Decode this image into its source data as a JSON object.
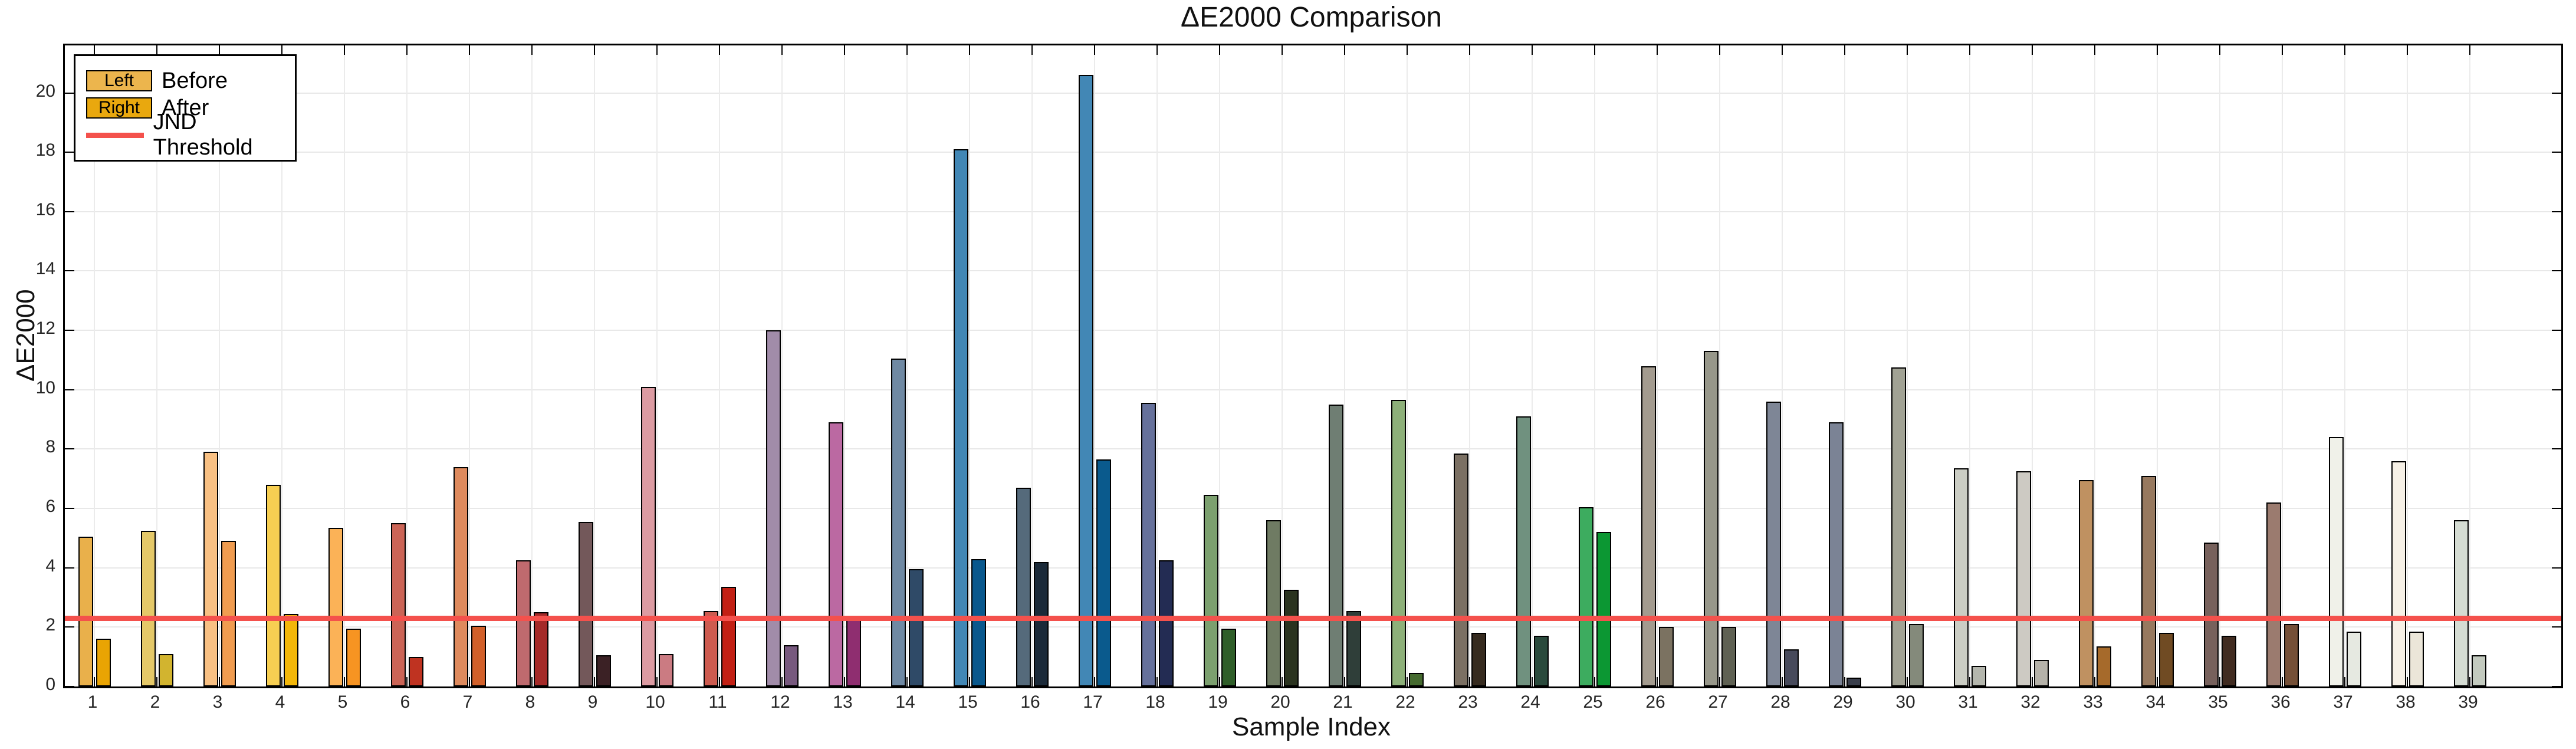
{
  "chart": {
    "title": "ΔE2000 Comparison",
    "xlabel": "Sample Index",
    "ylabel": "ΔE2000",
    "legend": {
      "before_swatch_text": "Left",
      "after_swatch_text": "Right",
      "before_label": "Before",
      "after_label": "After",
      "threshold_label": "JND Threshold"
    },
    "colors": {
      "threshold_line": "#F4514C",
      "axis": "#000000",
      "grid": "#E8E8E8",
      "tick_label": "#262626",
      "legend_before_swatch": "#ECB54D",
      "legend_after_swatch": "#E9A80E"
    }
  },
  "chart_data": {
    "type": "bar",
    "title": "ΔE2000 Comparison",
    "xlabel": "Sample Index",
    "ylabel": "ΔE2000",
    "categories": [
      1,
      2,
      3,
      4,
      5,
      6,
      7,
      8,
      9,
      10,
      11,
      12,
      13,
      14,
      15,
      16,
      17,
      18,
      19,
      20,
      21,
      22,
      23,
      24,
      25,
      26,
      27,
      28,
      29,
      30,
      31,
      32,
      33,
      34,
      35,
      36,
      37,
      38,
      39
    ],
    "series": [
      {
        "name": "Before",
        "values": [
          5.05,
          5.25,
          7.9,
          6.8,
          5.35,
          5.5,
          7.4,
          4.25,
          5.55,
          10.1,
          2.55,
          12.0,
          8.9,
          11.05,
          18.1,
          6.7,
          20.6,
          9.55,
          6.45,
          5.6,
          9.5,
          9.65,
          7.85,
          9.1,
          6.05,
          10.8,
          11.3,
          9.6,
          8.9,
          10.75,
          7.35,
          7.25,
          6.95,
          7.1,
          4.85,
          6.2,
          8.4,
          7.6,
          5.6
        ],
        "colors": [
          "#E9B04B",
          "#E4C868",
          "#F8C083",
          "#F7CF52",
          "#FBB257",
          "#CB6456",
          "#DE8A5D",
          "#BF6A6E",
          "#73585A",
          "#DC9BA2",
          "#CD5B4F",
          "#A18CA9",
          "#BB69A2",
          "#6F89A3",
          "#4287B5",
          "#556A7B",
          "#4287B5",
          "#66719B",
          "#7CA06F",
          "#6F7B63",
          "#6F7E73",
          "#8DB079",
          "#7B7063",
          "#70917F",
          "#3DAC5F",
          "#A39B8F",
          "#97978A",
          "#7E8696",
          "#7B8395",
          "#A1A294",
          "#CBCDC4",
          "#CDCAC3",
          "#BF9161",
          "#97795F",
          "#77615C",
          "#9B7B6F",
          "#F0F1E9",
          "#F6F0E6",
          "#D5DCD3"
        ]
      },
      {
        "name": "After",
        "values": [
          1.6,
          1.1,
          4.9,
          2.45,
          1.95,
          1.0,
          2.05,
          2.5,
          1.05,
          1.1,
          3.35,
          1.4,
          2.35,
          3.95,
          4.3,
          4.2,
          7.65,
          4.25,
          1.95,
          3.25,
          2.55,
          0.45,
          1.8,
          1.7,
          5.2,
          2.0,
          2.0,
          1.25,
          0.3,
          2.1,
          0.7,
          0.9,
          1.35,
          1.8,
          1.7,
          2.1,
          1.85,
          1.85,
          1.05
        ],
        "colors": [
          "#E9A403",
          "#D2B42F",
          "#F09C50",
          "#F3B70A",
          "#F79422",
          "#BF3321",
          "#D2602A",
          "#A42A28",
          "#3B2125",
          "#CB7B82",
          "#C22014",
          "#77597E",
          "#8F2E70",
          "#2F4A67",
          "#09588D",
          "#1B2A39",
          "#0A5A8D",
          "#232C53",
          "#2F5E29",
          "#2A331F",
          "#2F3E39",
          "#456A2F",
          "#362B1F",
          "#2A4A3C",
          "#0C9733",
          "#7B7261",
          "#5F6153",
          "#474A5B",
          "#393E4B",
          "#848A7B",
          "#B4B6AD",
          "#B5B2A9",
          "#A66A2B",
          "#704B23",
          "#402B20",
          "#755037",
          "#E6E9E1",
          "#EBE6D9",
          "#C3CABF"
        ]
      }
    ],
    "threshold": {
      "label": "JND Threshold",
      "value": 2.3,
      "color": "#F4514C"
    },
    "ylim": [
      0,
      21.6
    ],
    "yticks": [
      0,
      2,
      4,
      6,
      8,
      10,
      12,
      14,
      16,
      18,
      20
    ],
    "grid": true,
    "legend_position": "upper-left"
  }
}
